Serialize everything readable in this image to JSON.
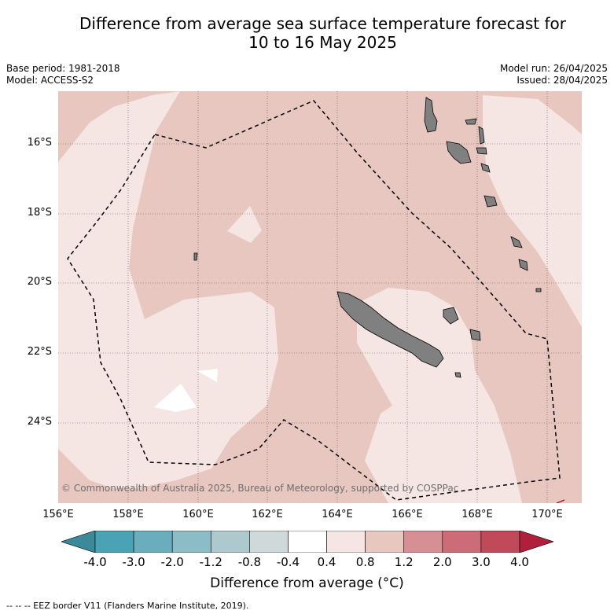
{
  "title": {
    "line1": "Difference from average sea surface temperature forecast for",
    "line2": "10 to 16 May 2025"
  },
  "meta": {
    "base_period": "Base period: 1981-2018",
    "model": "Model: ACCESS-S2",
    "model_run": "Model run: 26/04/2025",
    "issued": "Issued: 28/04/2025"
  },
  "map": {
    "lat_labels": [
      "16°S",
      "18°S",
      "20°S",
      "22°S",
      "24°S"
    ],
    "lon_labels": [
      "156°E",
      "158°E",
      "160°E",
      "162°E",
      "164°E",
      "166°E",
      "168°E",
      "170°E"
    ],
    "credit": "© Commonwealth of Australia 2025, Bureau of Meteorology, supported by COSPPac",
    "colors": {
      "anomaly_0_4_to_0_8": "#f5e6e4",
      "anomaly_0_8_to_1_2": "#e8c7c1",
      "anomaly_minus_0_4_to_0_4": "#ffffff",
      "land": "#808080",
      "eez_border": "#000000"
    }
  },
  "colorbar": {
    "ticks": [
      "-4.0",
      "-3.0",
      "-2.0",
      "-1.2",
      "-0.8",
      "-0.4",
      "0.4",
      "0.8",
      "1.2",
      "2.0",
      "3.0",
      "4.0"
    ],
    "colors": [
      "#4aa3b4",
      "#6aaebd",
      "#8cbcc6",
      "#adc9cd",
      "#d0d9da",
      "#ffffff",
      "#f5e6e4",
      "#e8c7c1",
      "#d78f96",
      "#cd6b76",
      "#c0495a"
    ],
    "under_color": "#3a8a99",
    "over_color": "#b0203e",
    "label": "Difference from average (°C)"
  },
  "footer": "--  --  -- EEZ border V11 (Flanders Marine Institute, 2019)."
}
